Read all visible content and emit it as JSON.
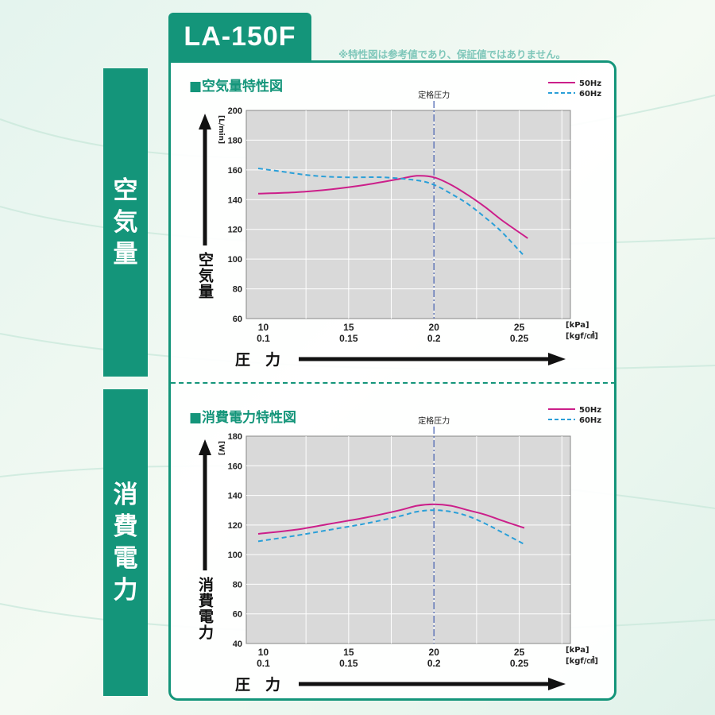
{
  "model": "LA-150F",
  "disclaimer": "※特性図は参考値であり、保証値ではありません。",
  "side_tabs": {
    "air": "空気量",
    "power": "消費電力"
  },
  "colors": {
    "brand": "#14957a",
    "series_50hz": "#cc1f8a",
    "series_60hz": "#2a9fd8",
    "rated_line": "#4a64b0"
  },
  "chart_data": [
    {
      "type": "line",
      "title": "■空気量特性図",
      "rated_label": "定格圧力",
      "rated_x": 20,
      "ylabel": "空気量",
      "yunit": "[L/min]",
      "xlabel": "圧　力",
      "xunit1": "[kPa]",
      "xunit2": "[kgf/㎠]",
      "xlim": [
        9,
        28
      ],
      "ylim": [
        60,
        200
      ],
      "yticks": [
        60,
        80,
        100,
        120,
        140,
        160,
        180,
        200
      ],
      "xticks": [
        10,
        15,
        20,
        25
      ],
      "xticks_labels_kpa": [
        "10",
        "15",
        "20",
        "25"
      ],
      "xticks_labels_kgf": [
        "0.1",
        "0.15",
        "0.2",
        "0.25"
      ],
      "grid": true,
      "legend": "top-right",
      "series": [
        {
          "name": "50Hz",
          "style": "solid",
          "x": [
            9.7,
            12,
            14,
            16,
            18,
            19,
            20,
            21,
            22,
            23,
            24,
            25.5
          ],
          "y": [
            144,
            145,
            147,
            150,
            154,
            156,
            155,
            150,
            143,
            135,
            126,
            114
          ]
        },
        {
          "name": "60Hz",
          "style": "dashed",
          "x": [
            9.7,
            11,
            13,
            15,
            17,
            19,
            20,
            21,
            22,
            23,
            24,
            25.3
          ],
          "y": [
            161,
            159,
            156,
            155,
            155,
            153,
            150,
            144,
            137,
            128,
            118,
            102
          ]
        }
      ]
    },
    {
      "type": "line",
      "title": "■消費電力特性図",
      "rated_label": "定格圧力",
      "rated_x": 20,
      "ylabel": "消費電力",
      "yunit": "[W]",
      "xlabel": "圧　力",
      "xunit1": "[kPa]",
      "xunit2": "[kgf/㎠]",
      "xlim": [
        9,
        28
      ],
      "ylim": [
        40,
        180
      ],
      "yticks": [
        40,
        60,
        80,
        100,
        120,
        140,
        160,
        180
      ],
      "xticks": [
        10,
        15,
        20,
        25
      ],
      "xticks_labels_kpa": [
        "10",
        "15",
        "20",
        "25"
      ],
      "xticks_labels_kgf": [
        "0.1",
        "0.15",
        "0.2",
        "0.25"
      ],
      "grid": true,
      "legend": "top-right",
      "series": [
        {
          "name": "50Hz",
          "style": "solid",
          "x": [
            9.7,
            12,
            14,
            16,
            18,
            19,
            20,
            21,
            22,
            23,
            24,
            25.3
          ],
          "y": [
            114,
            117,
            121,
            125,
            130,
            133,
            134,
            133,
            130,
            127,
            123,
            118
          ]
        },
        {
          "name": "60Hz",
          "style": "dashed",
          "x": [
            9.7,
            12,
            14,
            16,
            18,
            19,
            20,
            21,
            22,
            23,
            24,
            25.3
          ],
          "y": [
            109,
            113,
            117,
            121,
            126,
            129,
            130,
            129,
            126,
            121,
            115,
            107
          ]
        }
      ]
    }
  ]
}
